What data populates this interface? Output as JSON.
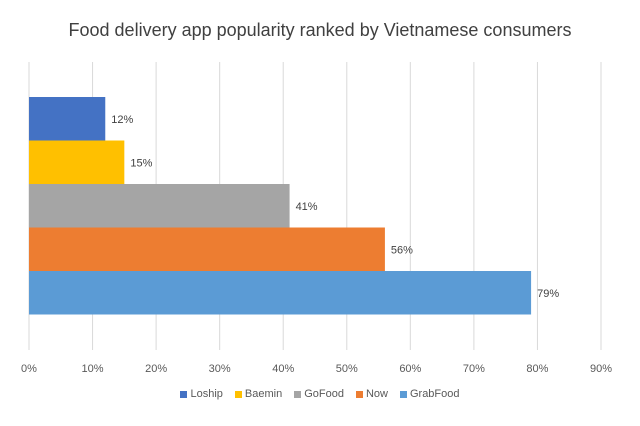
{
  "chart_data": {
    "type": "bar",
    "orientation": "horizontal",
    "title": "Food delivery app popularity ranked by Vietnamese consumers",
    "series": [
      {
        "name": "Loship",
        "value": 12,
        "label": "12%",
        "color": "#4472C4"
      },
      {
        "name": "Baemin",
        "value": 15,
        "label": "15%",
        "color": "#FFC000"
      },
      {
        "name": "GoFood",
        "value": 41,
        "label": "41%",
        "color": "#A5A5A5"
      },
      {
        "name": "Now",
        "value": 56,
        "label": "56%",
        "color": "#ED7D31"
      },
      {
        "name": "GrabFood",
        "value": 79,
        "label": "79%",
        "color": "#5B9BD5"
      }
    ],
    "xlim": [
      0,
      90
    ],
    "xticks": [
      "0%",
      "10%",
      "20%",
      "30%",
      "40%",
      "50%",
      "60%",
      "70%",
      "80%",
      "90%"
    ],
    "grid": true,
    "legend": "bottom"
  }
}
